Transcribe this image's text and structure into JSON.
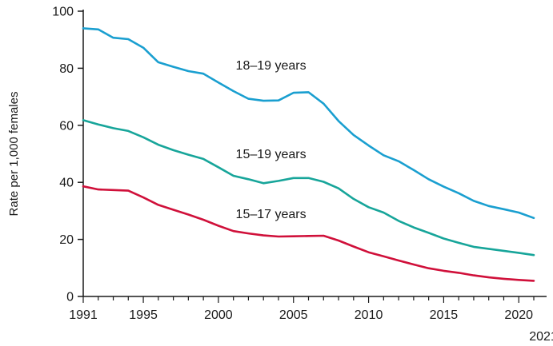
{
  "chart_data": {
    "type": "line",
    "title": "",
    "xlabel": "",
    "ylabel": "Rate per 1,000 females",
    "xlim": [
      1991,
      2021
    ],
    "ylim": [
      0,
      100
    ],
    "grid": false,
    "x_ticks": [
      "1991",
      "1995",
      "2000",
      "2005",
      "2010",
      "2015",
      "2020"
    ],
    "x_tick_values": [
      1991,
      1995,
      2000,
      2005,
      2010,
      2015,
      2020
    ],
    "x_extra_label": "2021",
    "y_ticks": [
      "0",
      "20",
      "40",
      "60",
      "80",
      "100"
    ],
    "y_tick_values": [
      0,
      20,
      40,
      60,
      80,
      100
    ],
    "x": [
      1991,
      1992,
      1993,
      1994,
      1995,
      1996,
      1997,
      1998,
      1999,
      2000,
      2001,
      2002,
      2003,
      2004,
      2005,
      2006,
      2007,
      2008,
      2009,
      2010,
      2011,
      2012,
      2013,
      2014,
      2015,
      2016,
      2017,
      2018,
      2019,
      2020,
      2021
    ],
    "series": [
      {
        "name": "18–19 years",
        "color": "#1a9fd0",
        "values": [
          94.0,
          93.6,
          90.7,
          90.2,
          87.2,
          82.1,
          80.5,
          79.0,
          78.1,
          75.0,
          72.0,
          69.3,
          68.6,
          68.7,
          71.4,
          71.6,
          67.6,
          61.5,
          56.6,
          52.9,
          49.5,
          47.4,
          44.3,
          41.1,
          38.5,
          36.2,
          33.5,
          31.7,
          30.6,
          29.4,
          27.5
        ]
      },
      {
        "name": "15–19 years",
        "color": "#17a59a",
        "values": [
          61.8,
          60.3,
          59.0,
          58.0,
          55.8,
          53.2,
          51.3,
          49.7,
          48.2,
          45.3,
          42.3,
          41.1,
          39.7,
          40.5,
          41.5,
          41.5,
          40.2,
          37.9,
          34.2,
          31.3,
          29.4,
          26.5,
          24.2,
          22.3,
          20.3,
          18.8,
          17.4,
          16.7,
          16.0,
          15.3,
          14.5
        ]
      },
      {
        "name": "15–17 years",
        "color": "#d0103a",
        "values": [
          38.6,
          37.5,
          37.3,
          37.1,
          34.7,
          32.1,
          30.4,
          28.7,
          26.9,
          24.8,
          22.9,
          22.1,
          21.4,
          21.0,
          21.1,
          21.2,
          21.3,
          19.6,
          17.5,
          15.5,
          14.1,
          12.6,
          11.2,
          9.9,
          9.0,
          8.3,
          7.4,
          6.7,
          6.2,
          5.8,
          5.5
        ]
      }
    ],
    "annotations": [
      {
        "text": "18–19 years",
        "x": 2003.5,
        "y": 79.5
      },
      {
        "text": "15–19 years",
        "x": 2003.5,
        "y": 48.5
      },
      {
        "text": "15–17 years",
        "x": 2003.5,
        "y": 27.5
      }
    ]
  }
}
